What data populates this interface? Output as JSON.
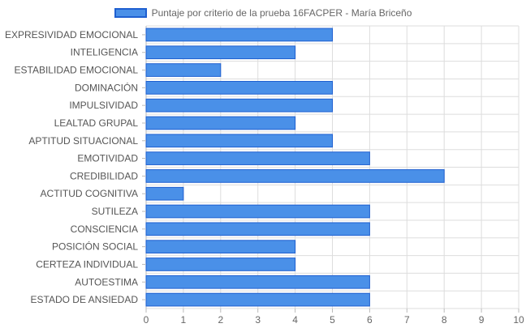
{
  "chart_data": {
    "type": "bar",
    "orientation": "horizontal",
    "series": [
      {
        "name": "Puntaje por criterio de la prueba 16FACPER - María Briceño",
        "values": [
          5,
          4,
          2,
          5,
          5,
          4,
          5,
          6,
          8,
          1,
          6,
          6,
          4,
          4,
          6,
          6
        ]
      }
    ],
    "categories": [
      "EXPRESIVIDAD EMOCIONAL",
      "INTELIGENCIA",
      "ESTABILIDAD EMOCIONAL",
      "DOMINACIÓN",
      "IMPULSIVIDAD",
      "LEALTAD GRUPAL",
      "APTITUD SITUACIONAL",
      "EMOTIVIDAD",
      "CREDIBILIDAD",
      "ACTITUD COGNITIVA",
      "SUTILEZA",
      "CONSCIENCIA",
      "POSICIÓN SOCIAL",
      "CERTEZA INDIVIDUAL",
      "AUTOESTIMA",
      "ESTADO DE ANSIEDAD"
    ],
    "xlim": [
      0,
      10
    ],
    "xticks": [
      0,
      1,
      2,
      3,
      4,
      5,
      6,
      7,
      8,
      9,
      10
    ],
    "grid": true,
    "legend_position": "top-center",
    "colors": {
      "bar_fill": "#4A90E8",
      "bar_border": "#1E5FD0",
      "grid": "#dddddd"
    }
  }
}
